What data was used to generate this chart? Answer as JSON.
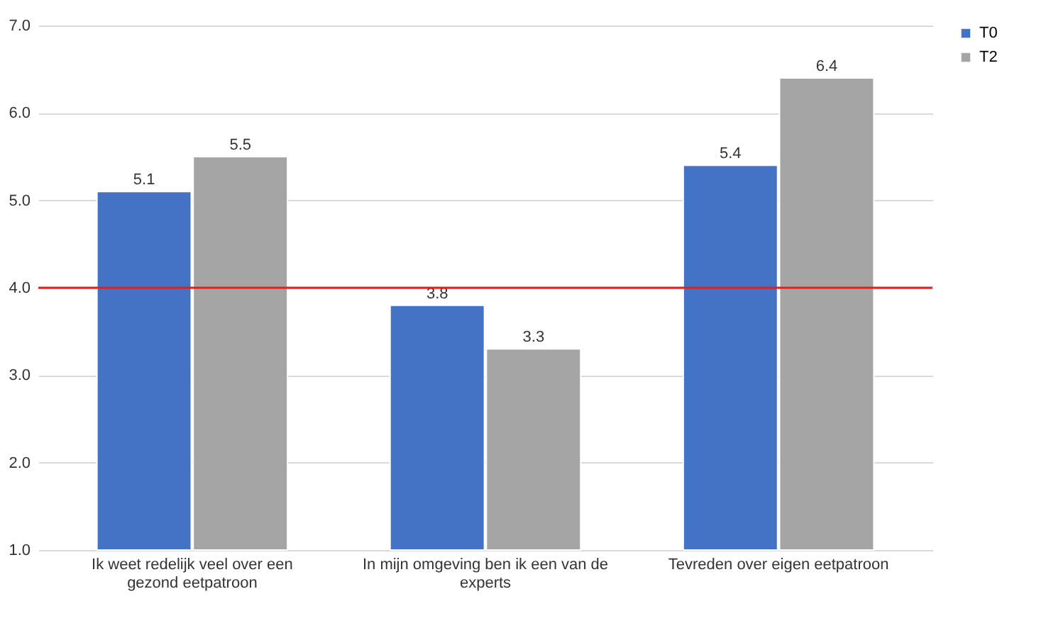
{
  "chart_data": {
    "type": "bar",
    "categories": [
      "Ik weet redelijk veel over een gezond eetpatroon",
      "In mijn omgeving ben ik een van de experts",
      "Tevreden over eigen eetpatroon"
    ],
    "series": [
      {
        "name": "T0",
        "color": "#4472c4",
        "values": [
          5.1,
          3.8,
          5.4
        ]
      },
      {
        "name": "T2",
        "color": "#a5a5a5",
        "values": [
          5.5,
          3.3,
          6.4
        ]
      }
    ],
    "ylim": [
      1,
      7
    ],
    "yticks": [
      {
        "value": 1,
        "label": "1.0"
      },
      {
        "value": 2,
        "label": "2.0"
      },
      {
        "value": 3,
        "label": "3.0"
      },
      {
        "value": 4,
        "label": "4.0"
      },
      {
        "value": 5,
        "label": "5.0"
      },
      {
        "value": 6,
        "label": "6.0"
      },
      {
        "value": 7,
        "label": "7.0"
      }
    ],
    "grid": "y",
    "legend": "right",
    "data_labels": true,
    "ref_lines": [
      {
        "axis": "y",
        "value": 4,
        "color": "#e02020"
      }
    ]
  }
}
